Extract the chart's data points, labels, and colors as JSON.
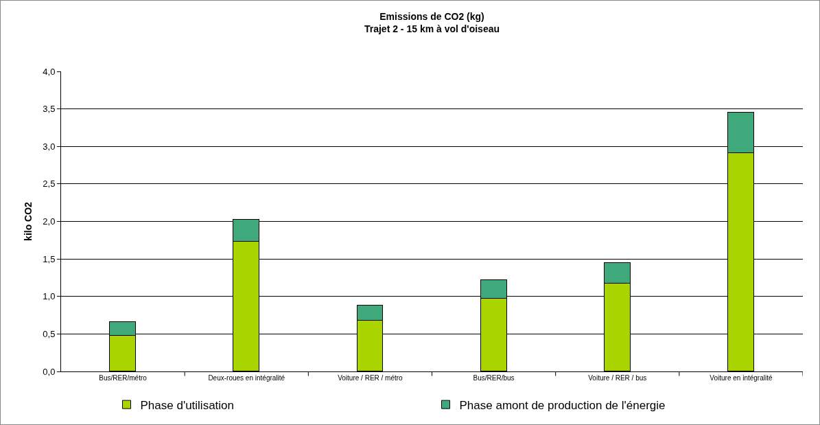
{
  "chart_data": {
    "type": "bar",
    "title": "Emissions de CO2 (kg)",
    "subtitle": "Trajet 2 - 15 km à vol d'oiseau",
    "ylabel": "kilo CO2",
    "categories": [
      "Bus/RER/métro",
      "Deux-roues en intégralité",
      "Voiture / RER / métro",
      "Bus/RER/bus",
      "Voiture / RER / bus",
      "Voiture en intégralité"
    ],
    "stacked": true,
    "series": [
      {
        "name": "Phase d'utilisation",
        "color": "#aad400",
        "values": [
          0.48,
          1.73,
          0.68,
          0.97,
          1.17,
          2.91
        ]
      },
      {
        "name": "Phase amont de production de l'énergie",
        "color": "#3fa97c",
        "values": [
          0.18,
          0.29,
          0.2,
          0.25,
          0.28,
          0.54
        ]
      }
    ],
    "ylim": [
      0,
      4
    ],
    "yticks": [
      {
        "value": 0,
        "label": "0,0"
      },
      {
        "value": 0.5,
        "label": "0,5"
      },
      {
        "value": 1,
        "label": "1,0"
      },
      {
        "value": 1.5,
        "label": "1,5"
      },
      {
        "value": 2,
        "label": "2,0"
      },
      {
        "value": 2.5,
        "label": "2,5"
      },
      {
        "value": 3,
        "label": "3,0"
      },
      {
        "value": 3.5,
        "label": "3,5"
      },
      {
        "value": 4,
        "label": "4,0"
      }
    ],
    "grid": "y",
    "legend": "bottom"
  }
}
